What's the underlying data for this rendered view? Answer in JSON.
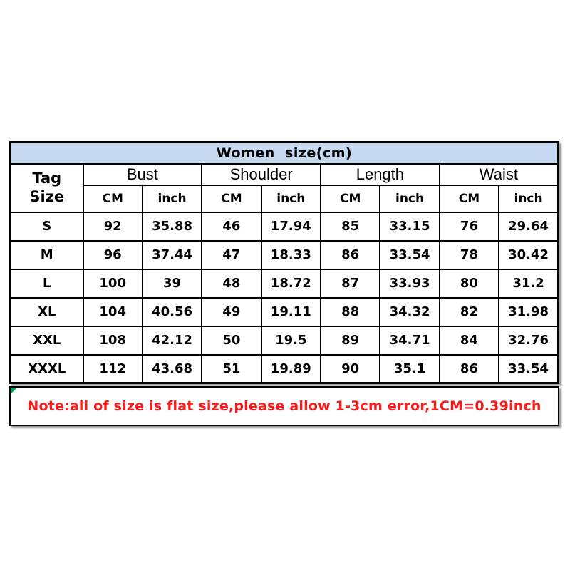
{
  "chart_data": {
    "type": "table",
    "title": "Women  size(cm)",
    "corner_header": "Tag\nSize",
    "column_groups": [
      "Bust",
      "Shoulder",
      "Length",
      "Waist"
    ],
    "sub_columns": [
      "CM",
      "inch"
    ],
    "rows": [
      {
        "tag": "S",
        "values": [
          92,
          35.88,
          46,
          17.94,
          85,
          33.15,
          76,
          29.64
        ]
      },
      {
        "tag": "M",
        "values": [
          96,
          37.44,
          47,
          18.33,
          86,
          33.54,
          78,
          30.42
        ]
      },
      {
        "tag": "L",
        "values": [
          100,
          39,
          48,
          18.72,
          87,
          33.93,
          80,
          31.2
        ]
      },
      {
        "tag": "XL",
        "values": [
          104,
          40.56,
          49,
          19.11,
          88,
          34.32,
          82,
          31.98
        ]
      },
      {
        "tag": "XXL",
        "values": [
          108,
          42.12,
          50,
          19.5,
          89,
          34.71,
          84,
          32.76
        ]
      },
      {
        "tag": "XXXL",
        "values": [
          112,
          43.68,
          51,
          19.89,
          90,
          35.1,
          86,
          33.54
        ]
      }
    ],
    "note": "Note:all of size is flat size,please allow 1-3cm error,1CM=0.39inch"
  },
  "colors": {
    "title_background": "#c6d9f0",
    "note_text": "#ff1a1a",
    "border": "#000000",
    "corner_marker_green": "#00a550"
  }
}
